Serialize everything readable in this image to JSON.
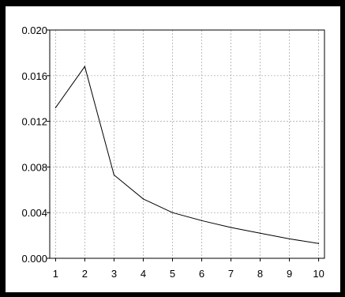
{
  "colors": {
    "background": "#ffffff",
    "plot_background": "#ffffff",
    "frame_border": "#000000",
    "grid": "#a0a0a0",
    "line": "#000000",
    "text": "#000000"
  },
  "chart_data": {
    "type": "line",
    "title": "",
    "xlabel": "",
    "ylabel": "",
    "x": [
      1,
      2,
      3,
      4,
      5,
      6,
      7,
      8,
      9,
      10
    ],
    "series": [
      {
        "values": [
          0.0132,
          0.0168,
          0.0073,
          0.0052,
          0.004,
          0.0033,
          0.0027,
          0.0022,
          0.0017,
          0.0013
        ]
      }
    ],
    "xlim": [
      0.8,
      10.2
    ],
    "ylim": [
      0.0,
      0.02
    ],
    "x_ticks": [
      "1",
      "2",
      "3",
      "4",
      "5",
      "6",
      "7",
      "8",
      "9",
      "10"
    ],
    "y_ticks": [
      "0.000",
      "0.004",
      "0.008",
      "0.012",
      "0.016",
      "0.020"
    ],
    "grid": true,
    "legend": "none"
  }
}
